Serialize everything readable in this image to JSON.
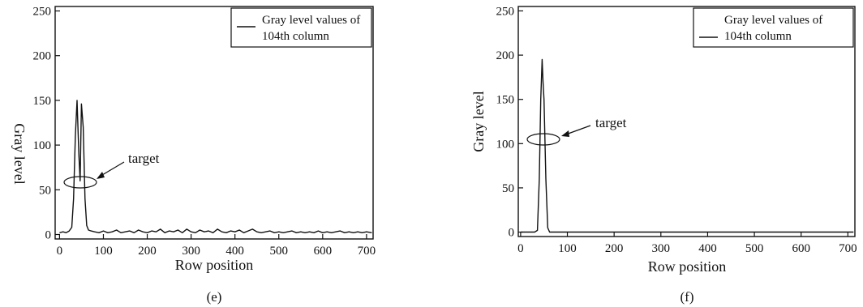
{
  "chart_data": [
    {
      "type": "line",
      "panel_label": "(e)",
      "xlabel": "Row position",
      "ylabel": "Gray level",
      "xlim": [
        -10,
        715
      ],
      "ylim": [
        -5,
        255
      ],
      "xticks": [
        0,
        100,
        200,
        300,
        400,
        500,
        600,
        700
      ],
      "yticks": [
        0,
        50,
        100,
        150,
        200,
        250
      ],
      "legend": {
        "label_line1": "Gray level values of",
        "label_line2": "104th column",
        "placement": "top-right"
      },
      "annotation": {
        "text": "target",
        "target_x": 45,
        "target_y": 60
      },
      "grid": false,
      "series": [
        {
          "x": [
            0,
            8,
            15,
            22,
            28,
            32,
            36,
            40,
            44,
            47,
            50,
            54,
            58,
            62,
            66,
            72,
            80,
            90,
            100,
            110,
            120,
            130,
            140,
            150,
            160,
            170,
            180,
            190,
            200,
            210,
            220,
            230,
            240,
            250,
            260,
            270,
            280,
            290,
            300,
            310,
            320,
            330,
            340,
            350,
            360,
            370,
            380,
            390,
            400,
            410,
            420,
            430,
            440,
            450,
            460,
            470,
            480,
            490,
            500,
            510,
            520,
            530,
            540,
            550,
            560,
            570,
            580,
            590,
            600,
            610,
            620,
            630,
            640,
            650,
            660,
            670,
            680,
            690,
            700,
            712
          ],
          "y": [
            2,
            3,
            2,
            4,
            8,
            40,
            110,
            150,
            90,
            60,
            146,
            120,
            40,
            10,
            5,
            4,
            3,
            2,
            4,
            2,
            3,
            5,
            2,
            3,
            4,
            2,
            5,
            3,
            2,
            4,
            3,
            6,
            2,
            4,
            3,
            5,
            2,
            6,
            3,
            2,
            5,
            3,
            4,
            2,
            6,
            3,
            2,
            4,
            3,
            5,
            2,
            4,
            6,
            3,
            2,
            3,
            4,
            2,
            3,
            2,
            3,
            4,
            2,
            3,
            2,
            3,
            2,
            4,
            2,
            3,
            2,
            3,
            4,
            2,
            3,
            2,
            3,
            2,
            3,
            2
          ]
        }
      ]
    },
    {
      "type": "line",
      "panel_label": "(f)",
      "xlabel": "Row position",
      "ylabel": "Gray level",
      "xlim": [
        -5,
        715
      ],
      "ylim": [
        -5,
        255
      ],
      "xticks": [
        0,
        100,
        200,
        300,
        400,
        500,
        600,
        700
      ],
      "yticks": [
        0,
        50,
        100,
        150,
        200,
        250
      ],
      "legend": {
        "label_line1": "Gray level values of",
        "label_line2": "104th column",
        "placement": "top-right"
      },
      "annotation": {
        "text": "target",
        "target_x": 45,
        "target_y": 105
      },
      "grid": false,
      "series": [
        {
          "x": [
            0,
            20,
            30,
            36,
            40,
            43,
            46,
            48,
            50,
            54,
            58,
            62,
            70,
            100,
            200,
            300,
            400,
            500,
            600,
            712
          ],
          "y": [
            0,
            0,
            0,
            2,
            60,
            150,
            195,
            170,
            150,
            60,
            5,
            0,
            0,
            0,
            0,
            0,
            0,
            0,
            0,
            0
          ]
        }
      ]
    }
  ]
}
